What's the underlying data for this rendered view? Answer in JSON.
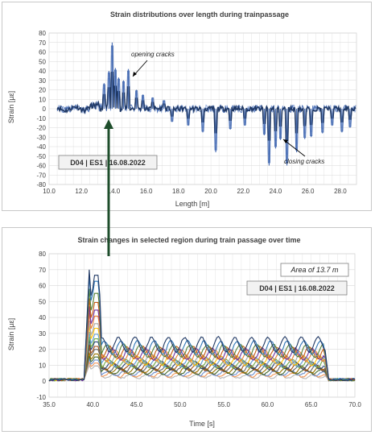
{
  "chart_data": [
    {
      "type": "line",
      "title": "Strain distributions over length during trainpassage",
      "xlabel": "Length [m]",
      "ylabel": "Strain [µε]",
      "xlim": [
        10.0,
        29.0
      ],
      "ylim": [
        -80,
        80
      ],
      "x_ticks": [
        "10.0",
        "12.0",
        "14.0",
        "16.0",
        "18.0",
        "20.0",
        "22.0",
        "24.0",
        "26.0",
        "28.0"
      ],
      "y_ticks": [
        "80",
        "70",
        "60",
        "50",
        "40",
        "30",
        "20",
        "10",
        "0",
        "-10",
        "-20",
        "-30",
        "-40",
        "-50",
        "-60",
        "-70",
        "-80"
      ],
      "x_tick_values": [
        10,
        12,
        14,
        16,
        18,
        20,
        22,
        24,
        26,
        28
      ],
      "y_tick_values": [
        80,
        70,
        60,
        50,
        40,
        30,
        20,
        10,
        0,
        -10,
        -20,
        -30,
        -40,
        -50,
        -60,
        -70,
        -80
      ],
      "grid": true,
      "series_colors": [
        "#1f3864",
        "#4a6fb5",
        "#8fa8d8"
      ],
      "opening_spikes": [
        {
          "x": 13.4,
          "y": 27
        },
        {
          "x": 13.7,
          "y": 40
        },
        {
          "x": 13.9,
          "y": 70
        },
        {
          "x": 14.1,
          "y": 43
        },
        {
          "x": 14.3,
          "y": 33
        },
        {
          "x": 14.6,
          "y": 30
        },
        {
          "x": 14.9,
          "y": 42
        },
        {
          "x": 15.4,
          "y": 20
        },
        {
          "x": 15.8,
          "y": 15
        },
        {
          "x": 16.4,
          "y": 12
        },
        {
          "x": 17.1,
          "y": 9
        }
      ],
      "closing_spikes": [
        {
          "x": 17.6,
          "y": -14
        },
        {
          "x": 18.6,
          "y": -18
        },
        {
          "x": 19.5,
          "y": -25
        },
        {
          "x": 20.3,
          "y": -46
        },
        {
          "x": 21.2,
          "y": -22
        },
        {
          "x": 22.1,
          "y": -18
        },
        {
          "x": 23.3,
          "y": -28
        },
        {
          "x": 23.6,
          "y": -60
        },
        {
          "x": 24.0,
          "y": -42
        },
        {
          "x": 24.3,
          "y": -33
        },
        {
          "x": 24.7,
          "y": -60
        },
        {
          "x": 25.3,
          "y": -46
        },
        {
          "x": 25.8,
          "y": -32
        },
        {
          "x": 26.2,
          "y": -30
        },
        {
          "x": 26.9,
          "y": -26
        },
        {
          "x": 27.5,
          "y": -18
        },
        {
          "x": 28.1,
          "y": -25
        },
        {
          "x": 28.6,
          "y": -20
        }
      ],
      "annotations": {
        "opening": "opening cracks",
        "closing": "closing cracks",
        "label_box": "D04 | ES1 | 16.08.2022"
      }
    },
    {
      "type": "line",
      "title": "Strain changes in selected region during train passage over time",
      "xlabel": "Time [s]",
      "ylabel": "Strain [µε]",
      "xlim": [
        35.0,
        70.0
      ],
      "ylim": [
        -10,
        80
      ],
      "x_ticks": [
        "35.0",
        "40.0",
        "45.0",
        "50.0",
        "55.0",
        "60.0",
        "65.0",
        "70.0"
      ],
      "y_ticks": [
        "80",
        "70",
        "60",
        "50",
        "40",
        "30",
        "20",
        "10",
        "0",
        "-10"
      ],
      "x_tick_values": [
        35,
        40,
        45,
        50,
        55,
        60,
        65,
        70
      ],
      "y_tick_values": [
        80,
        70,
        60,
        50,
        40,
        30,
        20,
        10,
        0,
        -10
      ],
      "grid": true,
      "plateau_time": [
        41.0,
        66.5
      ],
      "peak_time": [
        39.0,
        41.0
      ],
      "series": [
        {
          "peak": 70,
          "plateau": 23,
          "color": "#1f3864"
        },
        {
          "peak": 66,
          "plateau": 21,
          "color": "#2e75b6"
        },
        {
          "peak": 58,
          "plateau": 19,
          "color": "#548235"
        },
        {
          "peak": 52,
          "plateau": 18,
          "color": "#c55a11"
        },
        {
          "peak": 47,
          "plateau": 17,
          "color": "#7030a0"
        },
        {
          "peak": 43,
          "plateau": 16,
          "color": "#ed7d31"
        },
        {
          "peak": 38,
          "plateau": 14,
          "color": "#a5a5a5"
        },
        {
          "peak": 35,
          "plateau": 13,
          "color": "#ffc000"
        },
        {
          "peak": 31,
          "plateau": 12,
          "color": "#5b9bd5"
        },
        {
          "peak": 28,
          "plateau": 11,
          "color": "#70ad47"
        },
        {
          "peak": 26,
          "plateau": 10,
          "color": "#264478"
        },
        {
          "peak": 23,
          "plateau": 9,
          "color": "#9e480e"
        },
        {
          "peak": 21,
          "plateau": 8,
          "color": "#636363"
        },
        {
          "peak": 18,
          "plateau": 7,
          "color": "#997300"
        },
        {
          "peak": 16,
          "plateau": 6,
          "color": "#43682b"
        },
        {
          "peak": 14,
          "plateau": 5,
          "color": "#698ed0"
        },
        {
          "peak": 12,
          "plateau": 4,
          "color": "#f1975a"
        },
        {
          "peak": 10,
          "plateau": 3,
          "color": "#b7b7b7"
        }
      ],
      "annotations": {
        "area": "Area of 13.7 m",
        "label_box": "D04 | ES1 | 16.08.2022"
      }
    }
  ],
  "connector": {
    "color": "#1e4d2b"
  }
}
